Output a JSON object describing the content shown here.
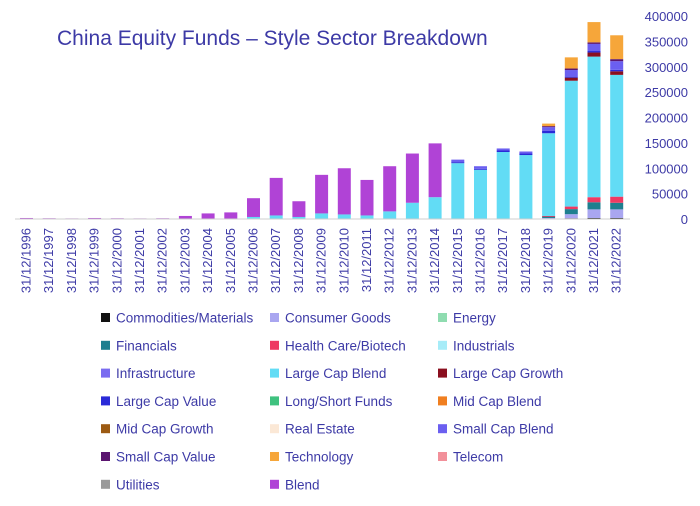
{
  "chart_data": {
    "type": "bar",
    "stacked": true,
    "title": "China Equity Funds – Style Sector Breakdown",
    "xlabel": "",
    "ylabel": "",
    "ylim": [
      0,
      400000
    ],
    "y_ticks": [
      0,
      50000,
      100000,
      150000,
      200000,
      250000,
      300000,
      350000,
      400000
    ],
    "y_axis_side": "right",
    "grid": false,
    "legend_position": "bottom",
    "colors": {
      "title": "#3d3aa6",
      "tick_text": "#3d3aa6",
      "axis": "#cfcfcf"
    },
    "categories": [
      "31/12/1996",
      "31/12/1997",
      "31/12/1998",
      "31/12/1999",
      "31/12/2000",
      "31/12/2001",
      "31/12/2002",
      "31/12/2003",
      "31/12/2004",
      "31/12/2005",
      "31/12/2006",
      "31/12/2007",
      "31/12/2008",
      "31/12/2009",
      "31/12/2010",
      "31/12/2011",
      "31/12/2012",
      "31/12/2013",
      "31/12/2014",
      "31/12/2015",
      "31/12/2016",
      "31/12/2017",
      "31/12/2018",
      "31/12/2019",
      "31/12/2020",
      "31/12/2021",
      "31/12/2022"
    ],
    "series": [
      {
        "name": "Commodities/Materials",
        "color": "#111111",
        "values": [
          0,
          0,
          0,
          0,
          0,
          0,
          0,
          0,
          0,
          0,
          0,
          0,
          0,
          0,
          0,
          0,
          0,
          0,
          0,
          0,
          0,
          0,
          0,
          0,
          1500,
          2000,
          2000
        ]
      },
      {
        "name": "Consumer Goods",
        "color": "#a9a6f0",
        "values": [
          0,
          0,
          0,
          0,
          0,
          0,
          0,
          0,
          0,
          0,
          0,
          0,
          0,
          0,
          0,
          0,
          0,
          0,
          0,
          0,
          0,
          0,
          0,
          2000,
          8000,
          17000,
          17000
        ]
      },
      {
        "name": "Energy",
        "color": "#8fdcb0",
        "values": [
          0,
          0,
          0,
          0,
          0,
          0,
          0,
          0,
          0,
          0,
          0,
          0,
          0,
          0,
          0,
          0,
          0,
          0,
          0,
          0,
          0,
          0,
          0,
          0,
          0,
          0,
          0
        ]
      },
      {
        "name": "Financials",
        "color": "#1e7f8f",
        "values": [
          0,
          0,
          0,
          0,
          0,
          0,
          0,
          0,
          0,
          0,
          0,
          0,
          0,
          0,
          0,
          0,
          0,
          0,
          0,
          0,
          0,
          0,
          0,
          3000,
          10000,
          14000,
          13000
        ]
      },
      {
        "name": "Health Care/Biotech",
        "color": "#ee3a62",
        "values": [
          0,
          0,
          0,
          0,
          0,
          0,
          0,
          0,
          0,
          0,
          0,
          0,
          0,
          0,
          0,
          0,
          0,
          0,
          0,
          0,
          0,
          0,
          0,
          1000,
          5000,
          10000,
          12000
        ]
      },
      {
        "name": "Industrials",
        "color": "#a6ecf8",
        "values": [
          0,
          0,
          0,
          0,
          0,
          0,
          0,
          0,
          0,
          0,
          0,
          0,
          0,
          0,
          0,
          0,
          0,
          0,
          0,
          0,
          0,
          0,
          0,
          0,
          0,
          0,
          0
        ]
      },
      {
        "name": "Infrastructure",
        "color": "#7a6cf0",
        "values": [
          0,
          0,
          0,
          0,
          0,
          0,
          0,
          0,
          0,
          0,
          0,
          0,
          0,
          0,
          0,
          0,
          0,
          0,
          0,
          0,
          0,
          0,
          0,
          0,
          0,
          0,
          0
        ]
      },
      {
        "name": "Large Cap Blend",
        "color": "#62dcf5",
        "values": [
          0,
          0,
          0,
          0,
          0,
          0,
          0,
          0,
          0,
          0,
          4000,
          7000,
          4000,
          11000,
          9000,
          7000,
          15000,
          32000,
          43000,
          110000,
          97000,
          132000,
          126000,
          163000,
          248000,
          277000,
          240000
        ]
      },
      {
        "name": "Large Cap Growth",
        "color": "#8a0f1f",
        "values": [
          0,
          0,
          0,
          0,
          0,
          0,
          0,
          0,
          0,
          0,
          0,
          0,
          0,
          0,
          0,
          0,
          0,
          0,
          0,
          0,
          0,
          0,
          0,
          0,
          6000,
          8000,
          7000
        ]
      },
      {
        "name": "Large Cap Value",
        "color": "#2a2ad8",
        "values": [
          0,
          0,
          0,
          0,
          0,
          0,
          0,
          0,
          0,
          0,
          0,
          0,
          0,
          0,
          0,
          0,
          0,
          0,
          0,
          2000,
          2000,
          3000,
          3000,
          5000,
          2000,
          3000,
          3000
        ]
      },
      {
        "name": "Long/Short Funds",
        "color": "#3fc27f",
        "values": [
          0,
          0,
          0,
          0,
          0,
          0,
          0,
          0,
          0,
          0,
          0,
          0,
          0,
          0,
          0,
          0,
          0,
          0,
          0,
          0,
          0,
          0,
          0,
          0,
          0,
          0,
          0
        ]
      },
      {
        "name": "Mid Cap Blend",
        "color": "#f07f20",
        "values": [
          0,
          0,
          0,
          0,
          0,
          0,
          0,
          0,
          0,
          0,
          0,
          0,
          0,
          0,
          0,
          0,
          0,
          0,
          0,
          0,
          0,
          0,
          0,
          0,
          0,
          0,
          0
        ]
      },
      {
        "name": "Mid Cap Growth",
        "color": "#9c5a12",
        "values": [
          0,
          0,
          0,
          0,
          0,
          0,
          0,
          0,
          0,
          0,
          0,
          0,
          0,
          0,
          0,
          0,
          0,
          0,
          0,
          0,
          0,
          0,
          0,
          0,
          0,
          0,
          0
        ]
      },
      {
        "name": "Real Estate",
        "color": "#fbe8d6",
        "values": [
          0,
          0,
          0,
          0,
          0,
          0,
          0,
          0,
          0,
          0,
          0,
          0,
          0,
          0,
          0,
          0,
          0,
          0,
          0,
          0,
          0,
          0,
          0,
          0,
          0,
          0,
          0
        ]
      },
      {
        "name": "Small Cap Blend",
        "color": "#6b5ff0",
        "values": [
          0,
          0,
          0,
          0,
          0,
          0,
          0,
          0,
          0,
          0,
          0,
          0,
          0,
          0,
          0,
          0,
          0,
          0,
          0,
          5000,
          5000,
          4000,
          4000,
          7000,
          13000,
          14000,
          17000
        ]
      },
      {
        "name": "Small Cap Value",
        "color": "#5b1570",
        "values": [
          0,
          0,
          0,
          0,
          0,
          0,
          0,
          0,
          0,
          0,
          0,
          0,
          0,
          0,
          0,
          0,
          0,
          0,
          0,
          0,
          0,
          0,
          0,
          2000,
          3000,
          3000,
          4000
        ]
      },
      {
        "name": "Technology",
        "color": "#f6a63a",
        "values": [
          0,
          0,
          0,
          0,
          0,
          0,
          0,
          0,
          0,
          0,
          0,
          0,
          0,
          0,
          0,
          0,
          0,
          0,
          0,
          0,
          0,
          0,
          0,
          5000,
          22000,
          40000,
          47000
        ]
      },
      {
        "name": "Telecom",
        "color": "#f2909a",
        "values": [
          0,
          0,
          0,
          0,
          0,
          0,
          0,
          0,
          0,
          0,
          0,
          0,
          0,
          0,
          0,
          0,
          0,
          0,
          0,
          0,
          0,
          0,
          0,
          0,
          0,
          0,
          0
        ]
      },
      {
        "name": "Utilities",
        "color": "#9a9a9a",
        "values": [
          0,
          0,
          0,
          0,
          0,
          0,
          0,
          0,
          0,
          0,
          0,
          0,
          0,
          0,
          0,
          0,
          0,
          0,
          0,
          0,
          0,
          0,
          0,
          0,
          0,
          0,
          0
        ]
      },
      {
        "name": "Blend",
        "color": "#b043d6",
        "values": [
          2000,
          1500,
          1200,
          2000,
          1500,
          1200,
          1500,
          6000,
          11000,
          13000,
          37000,
          74000,
          31000,
          76000,
          91000,
          70000,
          89000,
          97000,
          106000,
          0,
          0,
          0,
          0,
          0,
          0,
          0,
          0
        ]
      }
    ]
  }
}
